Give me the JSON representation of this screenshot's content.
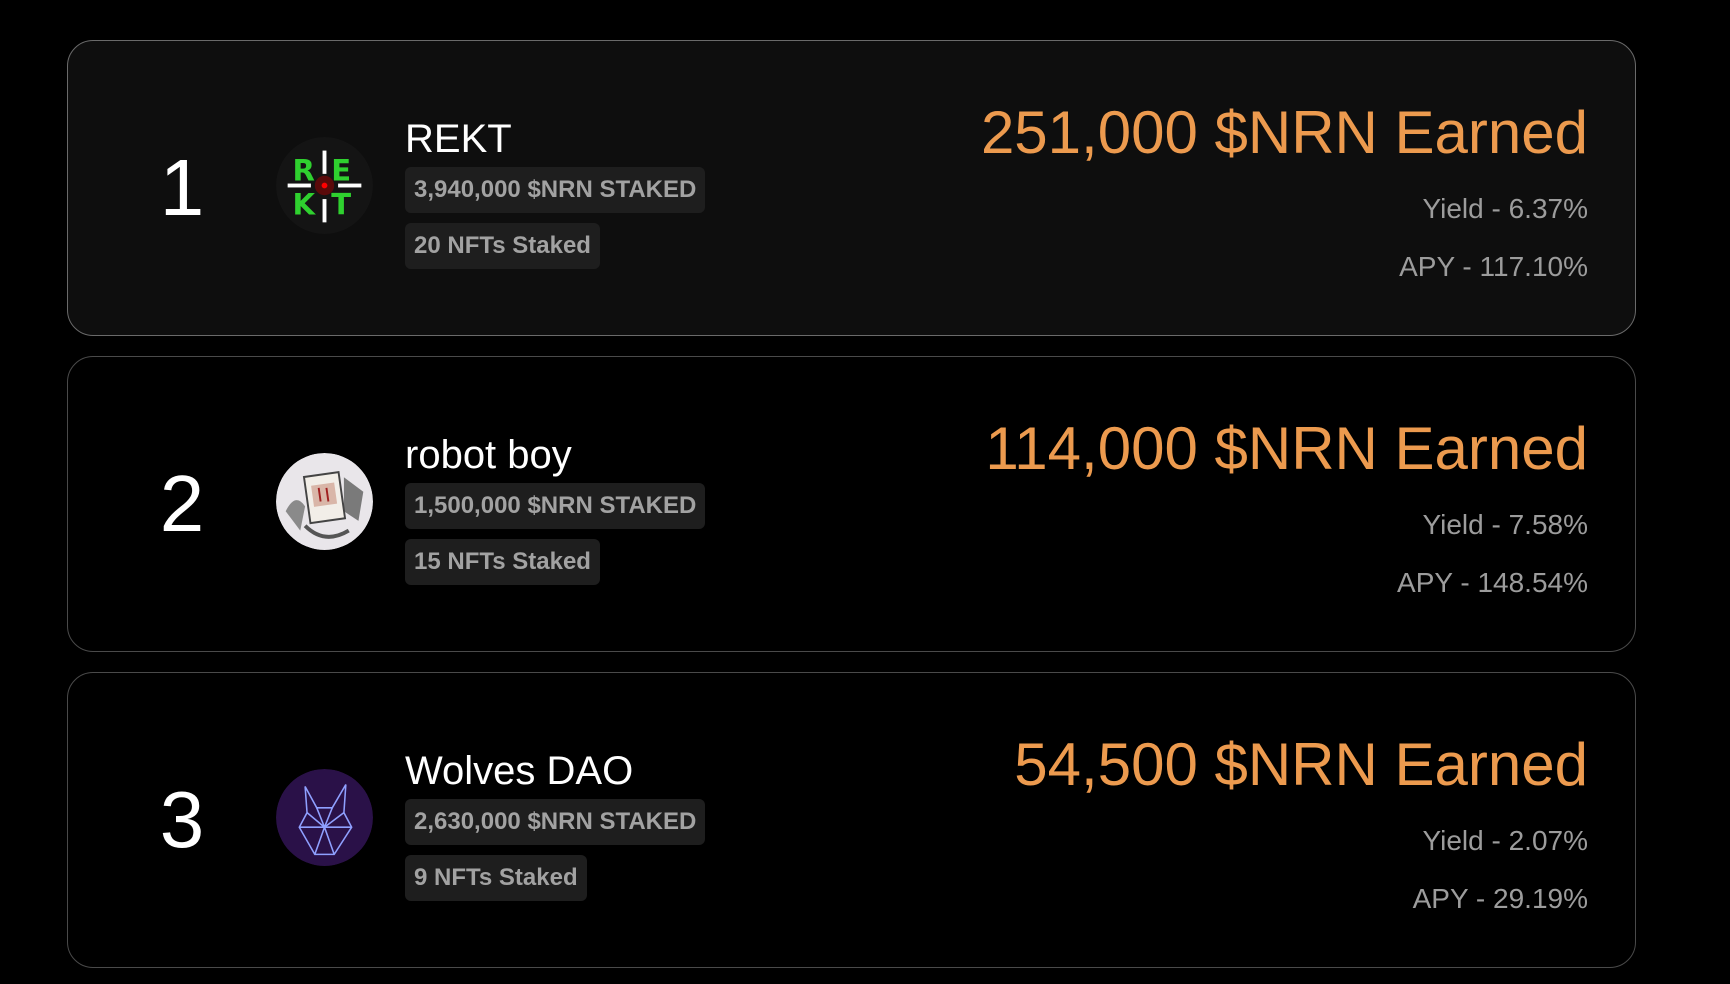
{
  "leaderboard": [
    {
      "rank": "1",
      "name": "REKT",
      "staked": "3,940,000 $NRN STAKED",
      "nfts": "20 NFTs Staked",
      "earned": "251,000 $NRN Earned",
      "yield": "Yield - 6.37%",
      "apy": "APY - 117.10%",
      "avatar": "rekt-logo",
      "logo_text": "REKT"
    },
    {
      "rank": "2",
      "name": "robot boy",
      "staked": "1,500,000 $NRN STAKED",
      "nfts": "15 NFTs Staked",
      "earned": "114,000 $NRN Earned",
      "yield": "Yield - 7.58%",
      "apy": "APY - 148.54%",
      "avatar": "robot-boy-image"
    },
    {
      "rank": "3",
      "name": "Wolves DAO",
      "staked": "2,630,000 $NRN STAKED",
      "nfts": "9 NFTs Staked",
      "earned": "54,500 $NRN Earned",
      "yield": "Yield - 2.07%",
      "apy": "APY - 29.19%",
      "avatar": "wolf-logo"
    }
  ],
  "colors": {
    "accent": "#ec9a4e",
    "muted_text": "#9c9c9c",
    "badge_bg": "#1e1e1e"
  }
}
